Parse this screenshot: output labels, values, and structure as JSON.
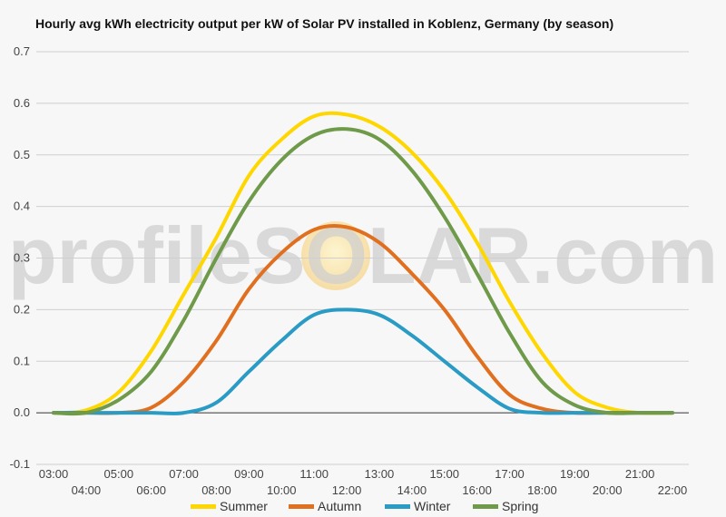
{
  "chart_data": {
    "type": "line",
    "title": "Hourly avg kWh electricity output per kW of Solar PV installed in Koblenz, Germany (by season)",
    "xlabel": "",
    "ylabel": "",
    "ylim": [
      -0.1,
      0.7
    ],
    "yticks": [
      "-0.1",
      "0.0",
      "0.1",
      "0.2",
      "0.3",
      "0.4",
      "0.5",
      "0.6",
      "0.7"
    ],
    "x": [
      "03:00",
      "04:00",
      "05:00",
      "06:00",
      "07:00",
      "08:00",
      "09:00",
      "10:00",
      "11:00",
      "12:00",
      "13:00",
      "14:00",
      "15:00",
      "16:00",
      "17:00",
      "18:00",
      "19:00",
      "20:00",
      "21:00",
      "22:00"
    ],
    "grid": true,
    "legend": "bottom",
    "watermark": "profileSOLAR.com",
    "series": [
      {
        "name": "Summer",
        "color": "#ffd700",
        "values": [
          0.0,
          0.005,
          0.04,
          0.12,
          0.23,
          0.34,
          0.46,
          0.53,
          0.575,
          0.578,
          0.555,
          0.505,
          0.43,
          0.33,
          0.215,
          0.115,
          0.04,
          0.01,
          0.0,
          0.0
        ]
      },
      {
        "name": "Autumn",
        "color": "#e07020",
        "values": [
          0.0,
          0.0,
          0.0,
          0.01,
          0.06,
          0.14,
          0.24,
          0.31,
          0.355,
          0.36,
          0.33,
          0.27,
          0.2,
          0.11,
          0.035,
          0.008,
          0.0,
          0.0,
          0.0,
          0.0
        ]
      },
      {
        "name": "Winter",
        "color": "#2a9bc4",
        "values": [
          0.0,
          0.0,
          0.0,
          0.0,
          0.0,
          0.02,
          0.08,
          0.14,
          0.19,
          0.2,
          0.19,
          0.15,
          0.1,
          0.05,
          0.008,
          0.0,
          0.0,
          0.0,
          0.0,
          0.0
        ]
      },
      {
        "name": "Spring",
        "color": "#6f9a49",
        "values": [
          0.0,
          0.0,
          0.025,
          0.08,
          0.18,
          0.3,
          0.41,
          0.49,
          0.538,
          0.55,
          0.53,
          0.47,
          0.38,
          0.27,
          0.155,
          0.06,
          0.015,
          0.0,
          0.0,
          0.0
        ]
      }
    ]
  }
}
